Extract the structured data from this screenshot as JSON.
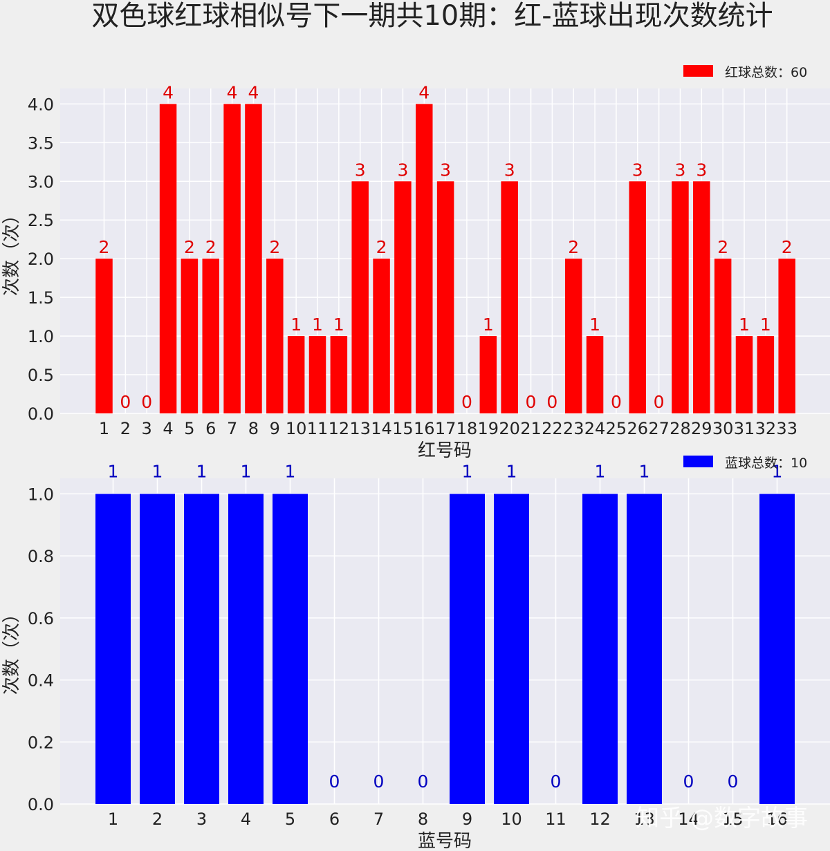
{
  "title": "双色球红球相似号下一期共10期：红-蓝球出现次数统计",
  "watermark": "知乎 @数字故事",
  "colors": {
    "red": "#ff0000",
    "blue": "#0000ff",
    "red_label": "#e00000",
    "blue_label": "#0000c0",
    "plot_bg": "#eaeaf2",
    "page_bg": "#efefef"
  },
  "chart_data": [
    {
      "type": "bar",
      "series": [
        {
          "name": "红球总数：60",
          "color": "#ff0000"
        }
      ],
      "legend": "红球总数：60",
      "legend_position": "top-right",
      "categories": [
        "1",
        "2",
        "3",
        "4",
        "5",
        "6",
        "7",
        "8",
        "9",
        "10",
        "11",
        "12",
        "13",
        "14",
        "15",
        "16",
        "17",
        "18",
        "19",
        "20",
        "21",
        "22",
        "23",
        "24",
        "25",
        "26",
        "27",
        "28",
        "29",
        "30",
        "31",
        "32",
        "33"
      ],
      "values": [
        2,
        0,
        0,
        4,
        2,
        2,
        4,
        4,
        2,
        1,
        1,
        1,
        3,
        2,
        3,
        4,
        3,
        0,
        1,
        3,
        0,
        0,
        2,
        1,
        0,
        3,
        0,
        3,
        3,
        2,
        1,
        1,
        2
      ],
      "xlabel": "红号码",
      "ylabel": "次数（次）",
      "ylim": [
        0,
        4.2
      ],
      "yticks": [
        "0.0",
        "0.5",
        "1.0",
        "1.5",
        "2.0",
        "2.5",
        "3.0",
        "3.5",
        "4.0"
      ],
      "grid": true
    },
    {
      "type": "bar",
      "series": [
        {
          "name": "蓝球总数：10",
          "color": "#0000ff"
        }
      ],
      "legend": "蓝球总数：10",
      "legend_position": "top-right",
      "categories": [
        "1",
        "2",
        "3",
        "4",
        "5",
        "6",
        "7",
        "8",
        "9",
        "10",
        "11",
        "12",
        "13",
        "14",
        "15",
        "16"
      ],
      "values": [
        1,
        1,
        1,
        1,
        1,
        0,
        0,
        0,
        1,
        1,
        0,
        1,
        1,
        0,
        0,
        1
      ],
      "xlabel": "蓝号码",
      "ylabel": "次数（次）",
      "ylim": [
        0,
        1.05
      ],
      "yticks": [
        "0.0",
        "0.2",
        "0.4",
        "0.6",
        "0.8",
        "1.0"
      ],
      "grid": true
    }
  ]
}
